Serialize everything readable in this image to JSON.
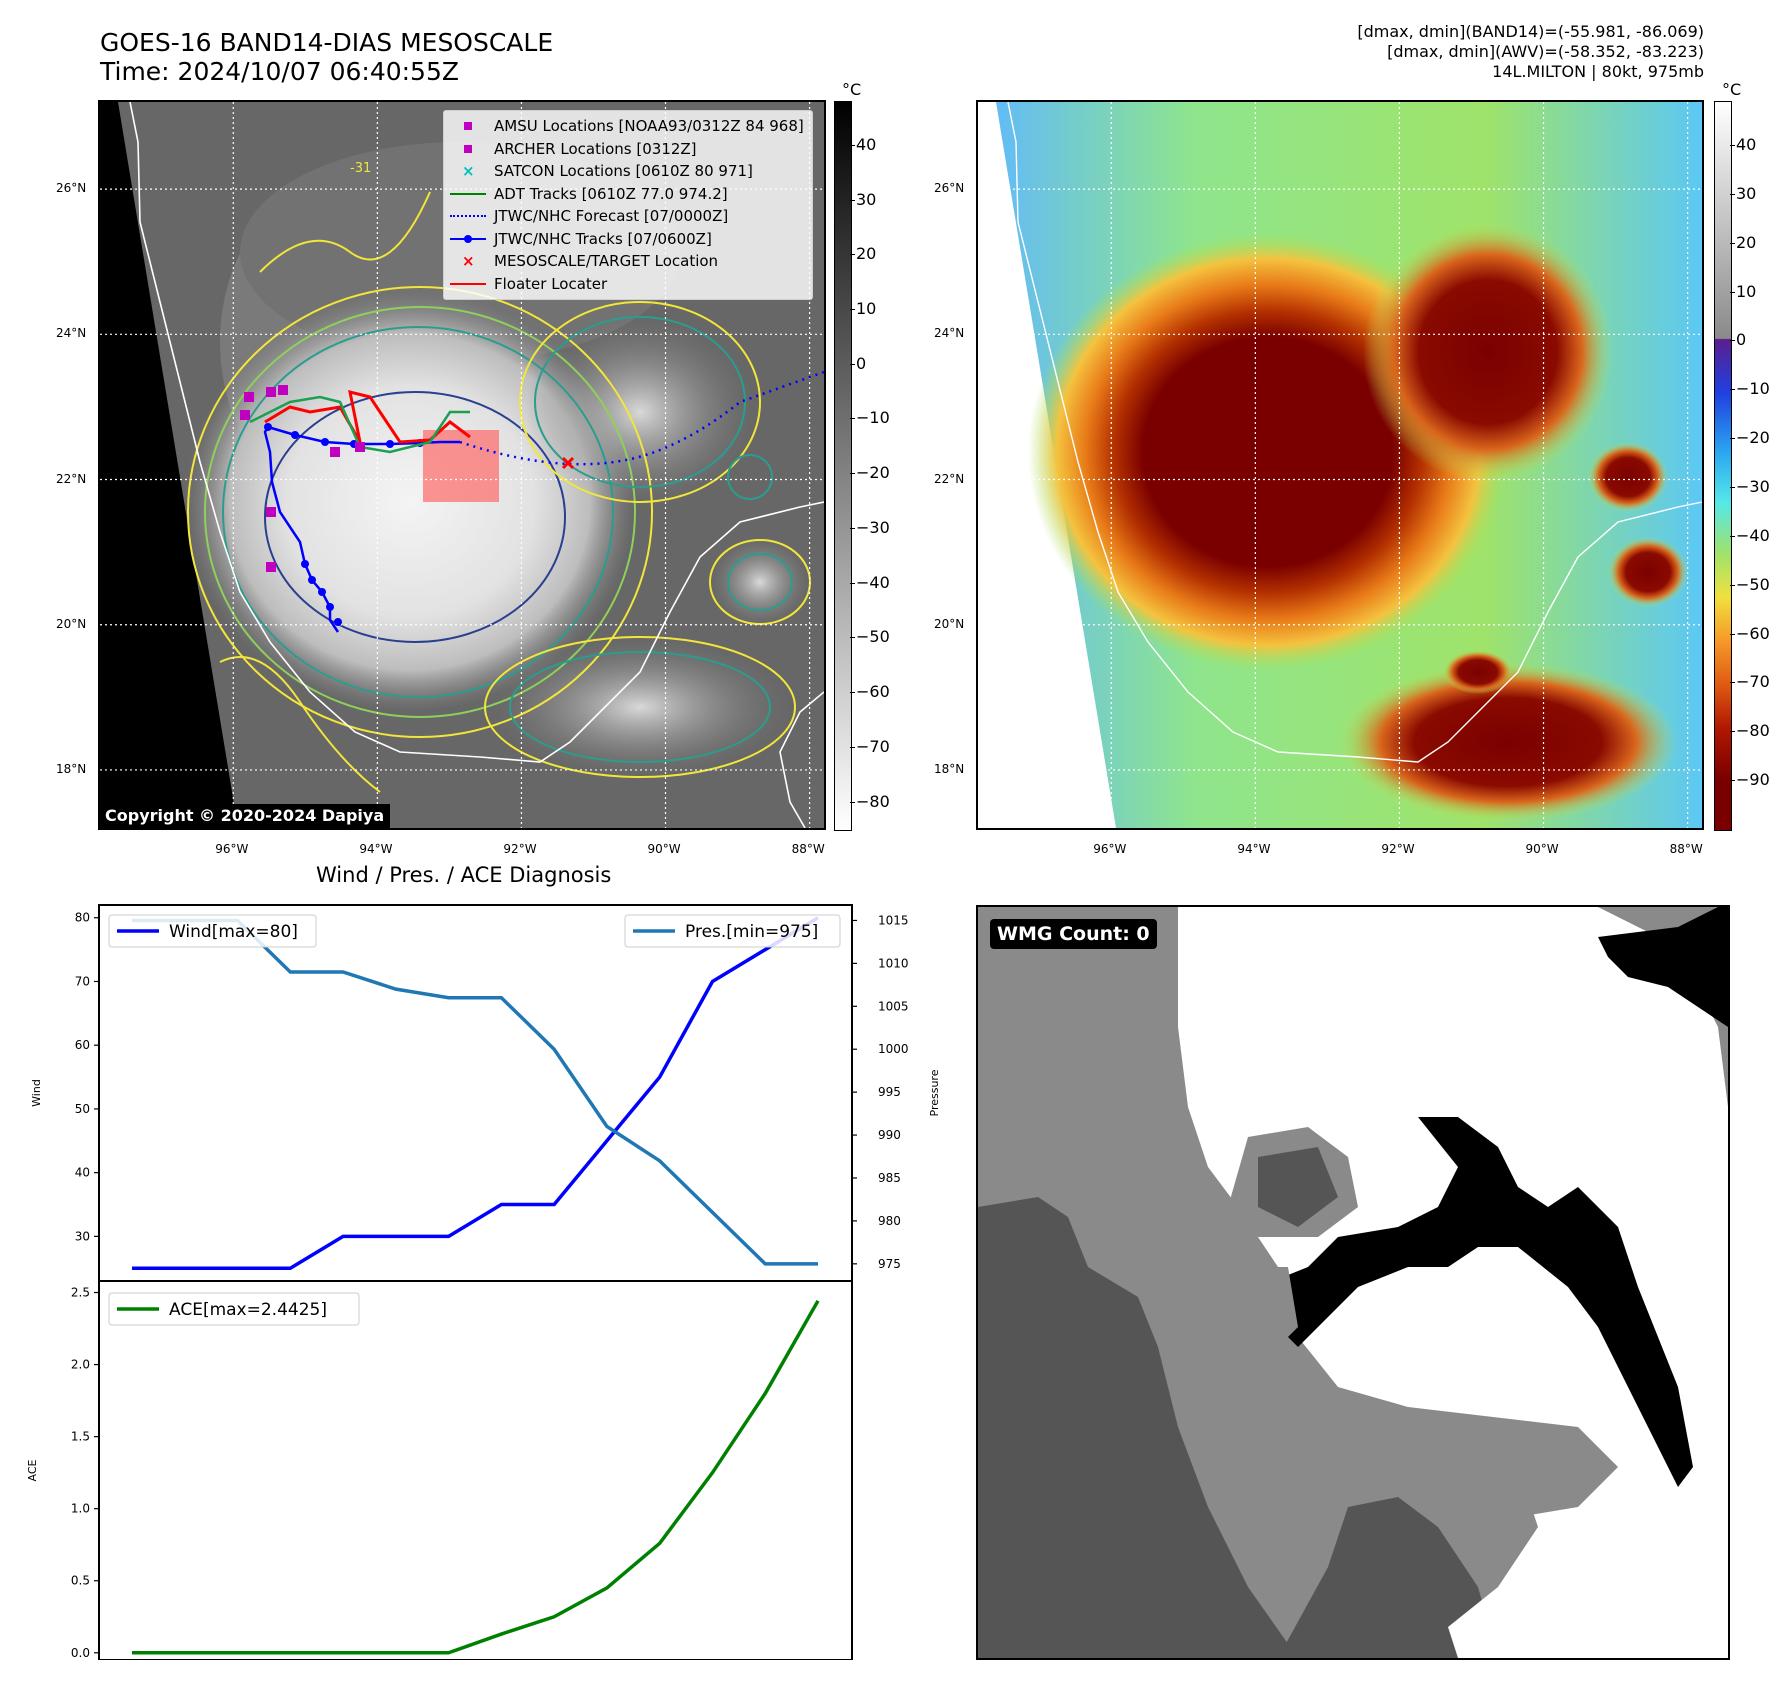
{
  "header": {
    "title_line1": "GOES-16 BAND14-DIAS MESOSCALE",
    "title_line2": "Time: 2024/10/07 06:40:55Z",
    "info_line1": "[dmax, dmin](BAND14)=(-55.981, -86.069)",
    "info_line2": "[dmax, dmin](AWV)=(-58.352, -83.223)",
    "info_line3": "14L.MILTON | 80kt, 975mb"
  },
  "colorbar_left": {
    "unit": "°C",
    "ticks": [
      "40",
      "30",
      "20",
      "10",
      "0",
      "−10",
      "−20",
      "−30",
      "−40",
      "−50",
      "−60",
      "−70",
      "−80"
    ],
    "range": [
      48,
      -85
    ],
    "tick_values": [
      40,
      30,
      20,
      10,
      0,
      -10,
      -20,
      -30,
      -40,
      -50,
      -60,
      -70,
      -80
    ]
  },
  "colorbar_right": {
    "unit": "°C",
    "ticks": [
      "40",
      "30",
      "20",
      "10",
      "0",
      "−10",
      "−20",
      "−30",
      "−40",
      "−50",
      "−60",
      "−70",
      "−80",
      "−90"
    ],
    "range": [
      49,
      -100
    ],
    "tick_values": [
      40,
      30,
      20,
      10,
      0,
      -10,
      -20,
      -30,
      -40,
      -50,
      -60,
      -70,
      -80,
      -90
    ]
  },
  "map_axes": {
    "lat_labels": [
      "26°N",
      "24°N",
      "22°N",
      "20°N",
      "18°N"
    ],
    "lat_values": [
      26,
      24,
      22,
      20,
      18
    ],
    "lon_labels": [
      "96°W",
      "94°W",
      "92°W",
      "90°W",
      "88°W"
    ],
    "lon_values": [
      -96,
      -94,
      -92,
      -90,
      -88
    ],
    "lat_range": [
      17.2,
      27.2
    ],
    "lon_range": [
      -97.85,
      -87.8
    ],
    "contour_label": "-31"
  },
  "legend": {
    "items": [
      {
        "label": "AMSU Locations [NOAA93/0312Z 84 968]",
        "symbol": "square",
        "color": "#bf00bf"
      },
      {
        "label": "ARCHER Locations [0312Z]",
        "symbol": "square",
        "color": "#bf00bf"
      },
      {
        "label": "SATCON Locations [0610Z 80 971]",
        "symbol": "x",
        "color": "#00bfbf"
      },
      {
        "label": "ADT Tracks [0610Z 77.0 974.2]",
        "symbol": "line",
        "color": "#008000"
      },
      {
        "label": "JTWC/NHC Forecast [07/0000Z]",
        "symbol": "dotted",
        "color": "#0000ff"
      },
      {
        "label": "JTWC/NHC Tracks [07/0600Z]",
        "symbol": "line-dot",
        "color": "#0000ff"
      },
      {
        "label": "MESOSCALE/TARGET Location",
        "symbol": "x",
        "color": "#ff0000"
      },
      {
        "label": "Floater Locater",
        "symbol": "line",
        "color": "#ff0000"
      }
    ]
  },
  "copyright": "Copyright © 2020-2024 Dapiya",
  "diagnosis": {
    "title": "Wind / Pres. / ACE Diagnosis",
    "wind_ylabel": "Wind",
    "pres_ylabel": "Pressure",
    "ace_ylabel": "ACE",
    "wind_legend": "Wind[max=80]",
    "pres_legend": "Pres.[min=975]",
    "ace_legend": "ACE[max=2.4425]"
  },
  "wmg": {
    "badge": "WMG Count: 0"
  },
  "chart_data": [
    {
      "type": "line",
      "title": "Wind / Pres. / ACE Diagnosis",
      "x": [
        0,
        1,
        2,
        3,
        4,
        5,
        6,
        7,
        8,
        9,
        10,
        11,
        12,
        13
      ],
      "series": [
        {
          "name": "Wind[max=80]",
          "axis": "left",
          "color": "#0000ff",
          "values": [
            25,
            25,
            25,
            25,
            30,
            30,
            30,
            35,
            35,
            45,
            55,
            70,
            75,
            80
          ]
        },
        {
          "name": "Pres.[min=975]",
          "axis": "right",
          "color": "#1f77b4",
          "values": [
            1015,
            1015,
            1015,
            1009,
            1009,
            1007,
            1006,
            1006,
            1000,
            991,
            987,
            981,
            975,
            975
          ]
        }
      ],
      "xlabel": "",
      "ylabel": "Wind",
      "y2label": "Pressure",
      "ylim": [
        23,
        82
      ],
      "y2lim": [
        973,
        1016.8
      ],
      "yticks": [
        30,
        40,
        50,
        60,
        70,
        80
      ],
      "y2ticks": [
        975,
        980,
        985,
        990,
        995,
        1000,
        1005,
        1010,
        1015
      ],
      "legend": [
        "top-left",
        "top-right"
      ],
      "grid": false
    },
    {
      "type": "line",
      "x": [
        0,
        1,
        2,
        3,
        4,
        5,
        6,
        7,
        8,
        9,
        10,
        11,
        12,
        13
      ],
      "series": [
        {
          "name": "ACE[max=2.4425]",
          "color": "#008000",
          "values": [
            0,
            0,
            0,
            0,
            0,
            0,
            0,
            0.13,
            0.25,
            0.45,
            0.76,
            1.25,
            1.8,
            2.4425
          ]
        }
      ],
      "xlabel": "",
      "ylabel": "ACE",
      "ylim": [
        -0.05,
        2.58
      ],
      "yticks": [
        0.0,
        0.5,
        1.0,
        1.5,
        2.0,
        2.5
      ],
      "legend": "top-left",
      "grid": false
    }
  ]
}
